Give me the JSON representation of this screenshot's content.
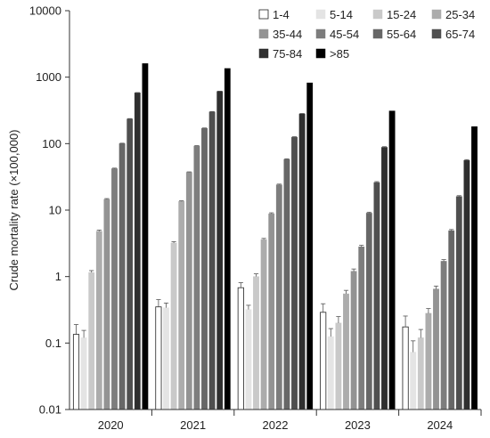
{
  "chart_data": {
    "type": "bar",
    "title": "",
    "xlabel": "",
    "ylabel": "Crude mortality rate (×100,000)",
    "yscale": "log",
    "ylim": [
      0.01,
      10000
    ],
    "yticks": [
      "0.01",
      "0.1",
      "1",
      "10",
      "100",
      "1000",
      "10000"
    ],
    "categories": [
      "2020",
      "2021",
      "2022",
      "2023",
      "2024"
    ],
    "grid": false,
    "legend_position": "top-right",
    "series": [
      {
        "name": "1-4",
        "color": "#ffffff",
        "values": [
          0.135,
          0.35,
          0.68,
          0.29,
          0.175
        ],
        "errors": [
          0.055,
          0.1,
          0.13,
          0.1,
          0.08
        ]
      },
      {
        "name": "5-14",
        "color": "#e4e4e4",
        "values": [
          0.12,
          0.34,
          0.32,
          0.125,
          0.073
        ],
        "errors": [
          0.035,
          0.06,
          0.05,
          0.04,
          0.035
        ]
      },
      {
        "name": "15-24",
        "color": "#c9c9c9",
        "values": [
          1.15,
          3.2,
          1.0,
          0.2,
          0.12
        ],
        "errors": [
          0.08,
          0.15,
          0.1,
          0.05,
          0.04
        ]
      },
      {
        "name": "25-34",
        "color": "#acacac",
        "values": [
          4.8,
          13.5,
          3.6,
          0.55,
          0.28
        ],
        "errors": [
          0.2,
          0.3,
          0.15,
          0.07,
          0.05
        ]
      },
      {
        "name": "35-44",
        "color": "#939393",
        "values": [
          14.5,
          37,
          8.8,
          1.2,
          0.65
        ],
        "errors": [
          0.4,
          0.6,
          0.3,
          0.1,
          0.07
        ]
      },
      {
        "name": "45-54",
        "color": "#7d7d7d",
        "values": [
          42,
          92,
          24,
          2.8,
          1.7
        ],
        "errors": [
          0.8,
          1.2,
          0.6,
          0.15,
          0.1
        ]
      },
      {
        "name": "55-64",
        "color": "#676767",
        "values": [
          100,
          170,
          58,
          9,
          4.9
        ],
        "errors": [
          1.5,
          2.0,
          1.0,
          0.3,
          0.2
        ]
      },
      {
        "name": "65-74",
        "color": "#4f4f4f",
        "values": [
          235,
          300,
          125,
          26,
          16
        ],
        "errors": [
          3,
          4,
          2,
          0.8,
          0.5
        ]
      },
      {
        "name": "75-84",
        "color": "#2f2f2f",
        "values": [
          580,
          610,
          280,
          88,
          56
        ],
        "errors": [
          6,
          6,
          4,
          2,
          1.5
        ]
      },
      {
        "name": ">85",
        "color": "#000000",
        "values": [
          1600,
          1350,
          820,
          310,
          180
        ],
        "errors": [
          0,
          0,
          0,
          0,
          0
        ]
      }
    ]
  }
}
